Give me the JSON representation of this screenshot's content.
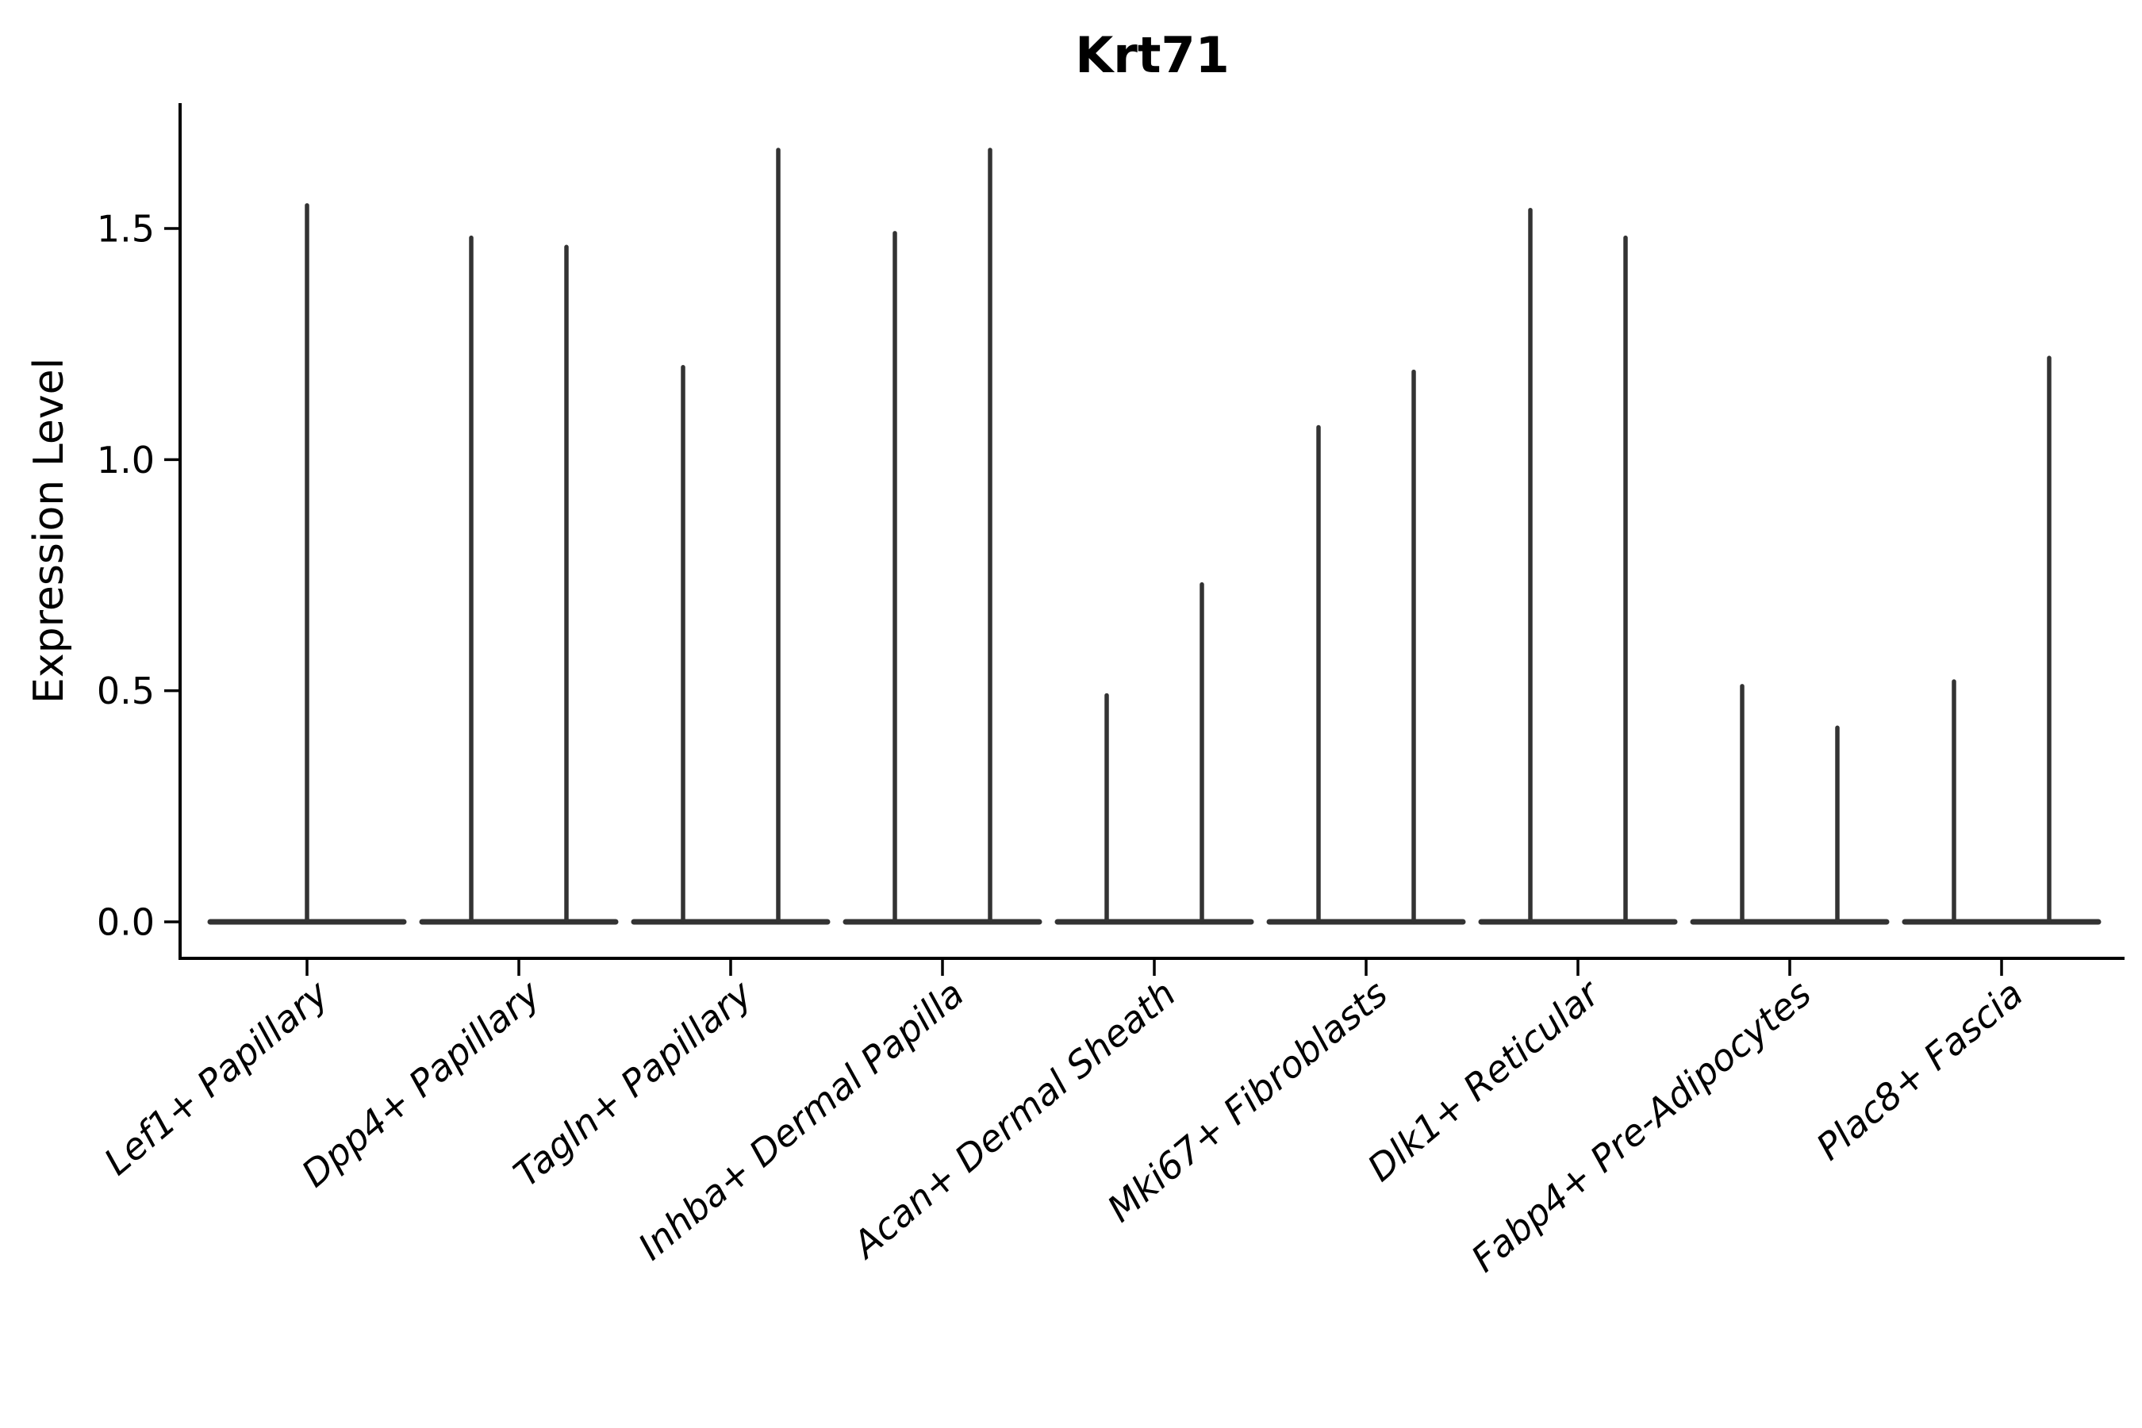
{
  "title": "Krt71",
  "colors": {
    "violin": "#333333",
    "axis": "#000000",
    "text": "#000000",
    "background": "#ffffff"
  },
  "chart_data": {
    "type": "violin",
    "title": "Krt71",
    "xlabel": "",
    "ylabel": "Expression Level",
    "ylim": [
      -0.08,
      1.77
    ],
    "yticks": [
      0.0,
      0.5,
      1.0,
      1.5
    ],
    "ytick_labels": [
      "0.0",
      "0.5",
      "1.0",
      "1.5"
    ],
    "grid": false,
    "legend": null,
    "baseline_value": 0.0,
    "categories": [
      "Lef1+ Papillary",
      "Dpp4+ Papillary",
      "Tagln+ Papillary",
      "Inhba+ Dermal Papilla",
      "Acan+ Dermal Sheath",
      "Mki67+ Fibroblasts",
      "Dlk1+ Reticular",
      "Fabp4+ Pre-Adipocytes",
      "Plac8+ Fascia"
    ],
    "series": [
      {
        "category": "Lef1+ Papillary",
        "spike_values": [
          1.55
        ]
      },
      {
        "category": "Dpp4+ Papillary",
        "spike_values": [
          1.48,
          1.46
        ]
      },
      {
        "category": "Tagln+ Papillary",
        "spike_values": [
          1.2,
          1.67
        ]
      },
      {
        "category": "Inhba+ Dermal Papilla",
        "spike_values": [
          1.49,
          1.67
        ]
      },
      {
        "category": "Acan+ Dermal Sheath",
        "spike_values": [
          0.49,
          0.73
        ]
      },
      {
        "category": "Mki67+ Fibroblasts",
        "spike_values": [
          1.07,
          1.19
        ]
      },
      {
        "category": "Dlk1+ Reticular",
        "spike_values": [
          1.54,
          1.48
        ]
      },
      {
        "category": "Fabp4+ Pre-Adipocytes",
        "spike_values": [
          0.51,
          0.42
        ]
      },
      {
        "category": "Plac8+ Fascia",
        "spike_values": [
          0.52,
          1.22
        ]
      }
    ]
  }
}
